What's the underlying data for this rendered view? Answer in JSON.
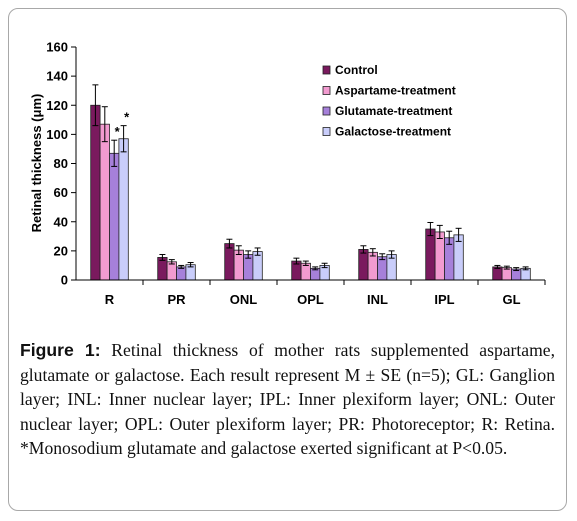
{
  "chart_data": {
    "type": "bar",
    "ylabel": "Retinal thickness (μm)",
    "ylim": [
      0,
      160
    ],
    "yticks": [
      0,
      20,
      40,
      60,
      80,
      100,
      120,
      140,
      160
    ],
    "categories": [
      "R",
      "PR",
      "ONL",
      "OPL",
      "INL",
      "IPL",
      "GL"
    ],
    "legend_position": "top-right",
    "series": [
      {
        "name": "Control",
        "color": "#7a1a5e",
        "values": [
          120,
          15.5,
          25,
          13,
          21,
          35,
          9
        ],
        "errors": [
          14,
          2,
          3,
          2,
          2.5,
          4.5,
          1
        ]
      },
      {
        "name": "Aspartame-treatment",
        "color": "#f29bd0",
        "values": [
          107,
          12.5,
          20.5,
          11.5,
          19,
          33,
          8.5
        ],
        "errors": [
          12,
          1.5,
          3,
          1.5,
          2.5,
          4.5,
          1
        ]
      },
      {
        "name": "Glutamate-treatment",
        "color": "#a680da",
        "values": [
          87,
          9,
          17.5,
          8,
          16,
          29,
          7.5
        ],
        "errors": [
          9,
          1,
          2.5,
          1,
          2,
          4.5,
          1
        ]
      },
      {
        "name": "Galactose-treatment",
        "color": "#c9cdfa",
        "values": [
          97,
          10.5,
          19.5,
          10,
          17.5,
          31,
          8
        ],
        "errors": [
          9,
          1.5,
          2.5,
          1.5,
          2.5,
          4.5,
          1
        ]
      }
    ],
    "annotations": [
      {
        "text": "*",
        "category": "R",
        "series": "Glutamate-treatment"
      },
      {
        "text": "*",
        "category": "R",
        "series": "Galactose-treatment"
      }
    ]
  },
  "caption": {
    "lead": "Figure 1:",
    "text": " Retinal thickness of mother rats supplemented aspartame, glutamate or galactose. Each result represent M ± SE (n=5); GL: Ganglion layer; INL: Inner nuclear layer; IPL: Inner plexiform layer; ONL: Outer nuclear layer; OPL: Outer plexiform layer; PR: Photoreceptor; R: Retina. *Monosodium glutamate and galactose exerted significant at P<0.05."
  }
}
